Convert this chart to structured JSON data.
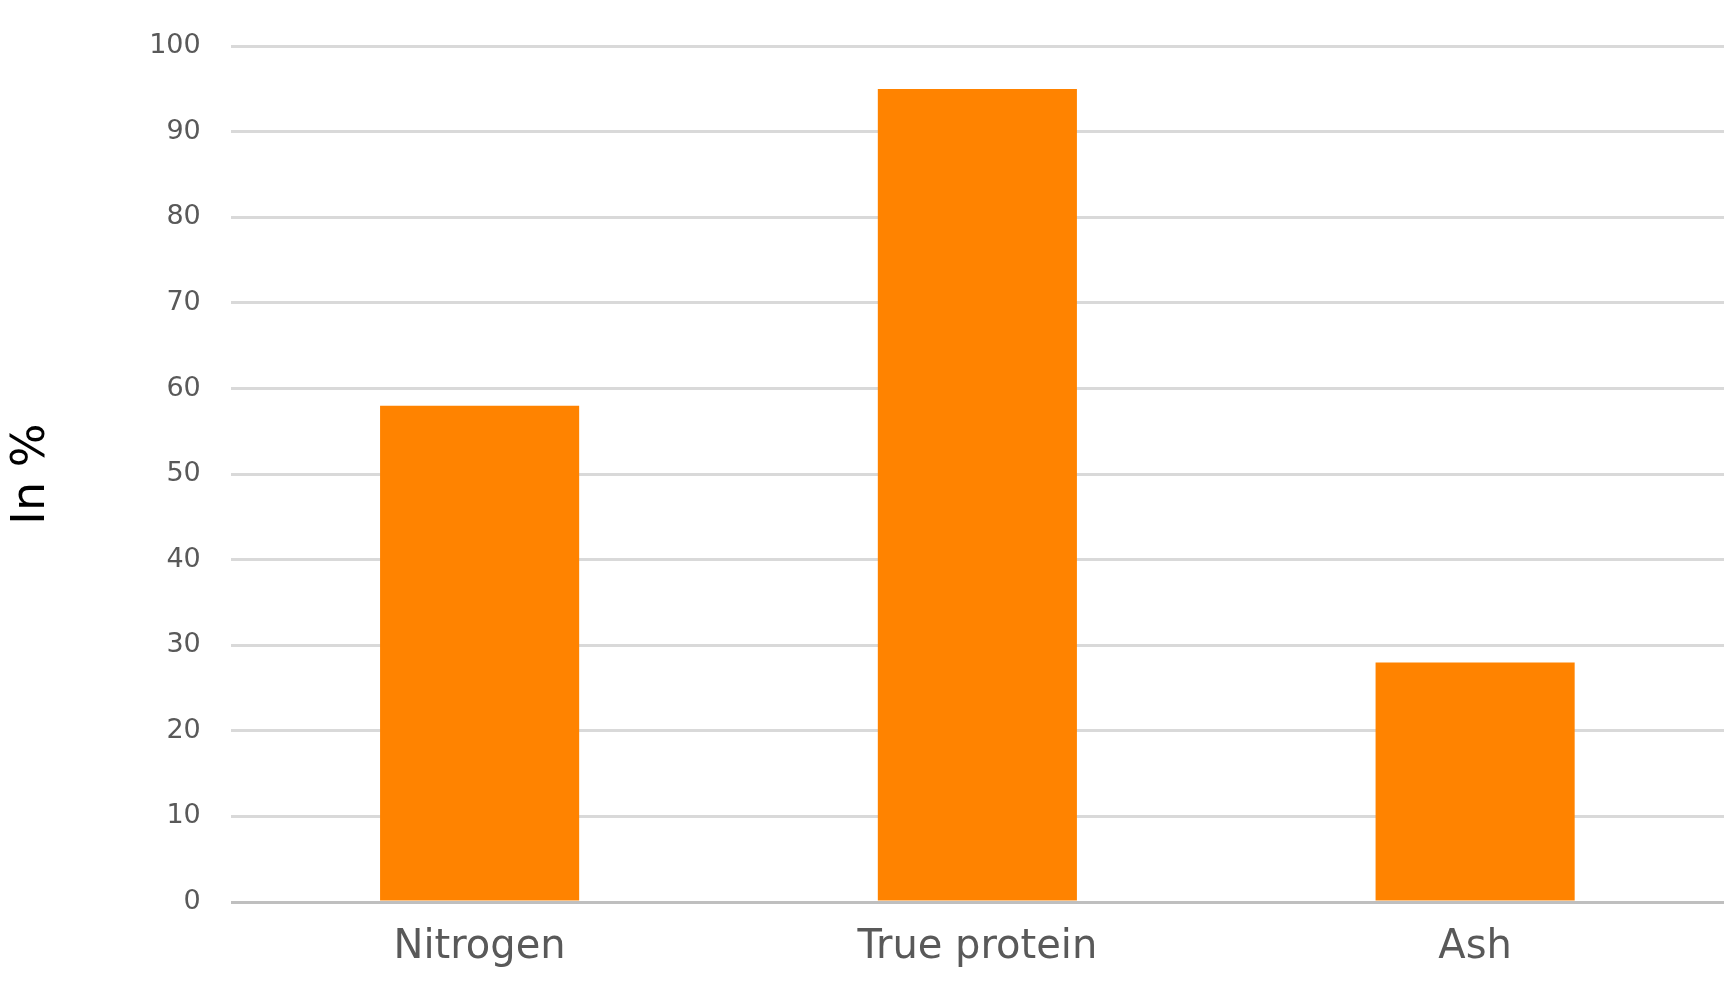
{
  "chart_data": {
    "type": "bar",
    "ylabel": "In %",
    "categories": [
      "Nitrogen",
      "True protein",
      "Ash"
    ],
    "values": [
      58,
      95,
      28
    ],
    "color": "#ff8300",
    "ylim": [
      0,
      100
    ],
    "yticks": [
      0,
      10,
      20,
      30,
      40,
      50,
      60,
      70,
      80,
      90,
      100
    ],
    "grid": "y",
    "legend": false
  }
}
